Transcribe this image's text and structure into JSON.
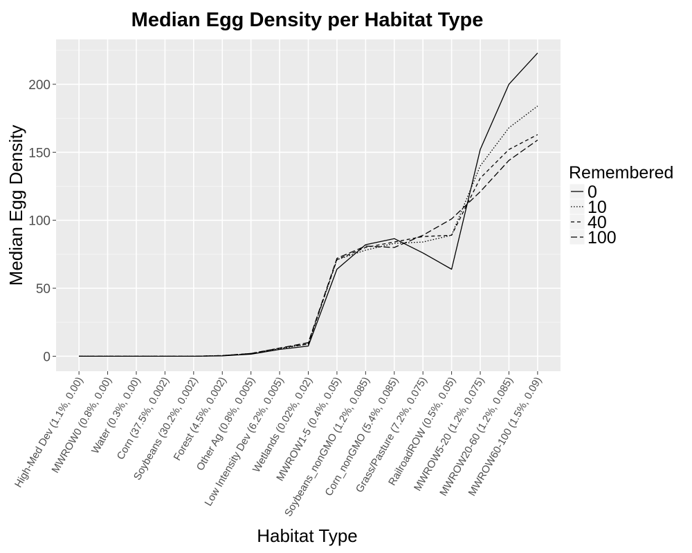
{
  "chart_data": {
    "type": "line",
    "title": "Median Egg Density per Habitat Type",
    "xlabel": "Habitat Type",
    "ylabel": "Median Egg Density",
    "ylim": [
      -11,
      233
    ],
    "yticks": [
      0,
      50,
      100,
      150,
      200
    ],
    "grid": true,
    "legend": {
      "title": "Remembered",
      "position": "right"
    },
    "categories": [
      "High-Med Dev (1.1%, 0.00)",
      "MWROW0 (0.8%, 0.00)",
      "Water (0.3%, 0.00)",
      "Corn (37.5%, 0.002)",
      "Soybeans (30.2%, 0.002)",
      "Forest (4.5%, 0.002)",
      "Other Ag (0.8%, 0.005)",
      "Low Intensity Dev (6.2%, 0.005)",
      "Wetlands (0.02%, 0.02)",
      "MWROW1-5 (0.4%, 0.05)",
      "Soybeans_nonGMO (1.2%, 0.085)",
      "Corn_nonGMO (5.4%, 0.085)",
      "Grass/Pasture (7.2%, 0.075)",
      "RailroadROW (0.5%, 0.05)",
      "MWROW5-20 (1.2%, 0.075)",
      "MWROW20-60 (1.2%, 0.085)",
      "MWROW60-100 (1.5%, 0.09)"
    ],
    "series": [
      {
        "name": "0",
        "dash": "solid",
        "values": [
          0,
          0,
          0,
          0,
          0,
          0.3,
          1.5,
          5,
          7.5,
          64,
          82,
          86.5,
          76,
          64,
          152,
          200,
          223
        ]
      },
      {
        "name": "10",
        "dash": "dotted",
        "values": [
          0,
          0,
          0,
          0,
          0,
          0.5,
          2,
          5.5,
          9,
          71,
          78,
          83,
          84,
          89,
          140,
          168,
          184
        ]
      },
      {
        "name": "40",
        "dash": "dashed",
        "values": [
          0,
          0,
          0,
          0,
          0,
          0.5,
          2,
          6,
          9,
          71,
          80,
          84,
          88,
          89,
          131,
          152,
          163
        ]
      },
      {
        "name": "100",
        "dash": "longdash",
        "values": [
          0,
          0,
          0,
          0,
          0,
          0.5,
          2,
          6,
          10,
          72,
          81,
          80,
          89,
          101,
          121,
          144,
          159
        ]
      }
    ],
    "colors": {
      "panel": "#ebebeb",
      "grid_major": "#ffffff",
      "grid_minor": "#f5f5f5",
      "line": "#000000",
      "legend_key": "#f2f2f2"
    }
  }
}
